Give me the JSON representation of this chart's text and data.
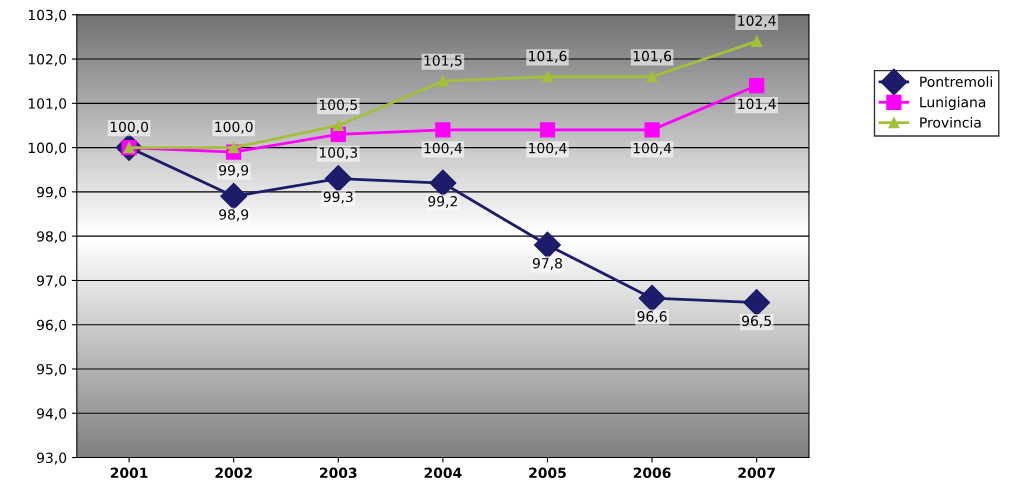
{
  "chart_data": {
    "type": "line",
    "categories": [
      "2001",
      "2002",
      "2003",
      "2004",
      "2005",
      "2006",
      "2007"
    ],
    "ylim": [
      93,
      103
    ],
    "yticks": [
      {
        "value": 93,
        "label": "93,0"
      },
      {
        "value": 94,
        "label": "94,0"
      },
      {
        "value": 95,
        "label": "95,0"
      },
      {
        "value": 96,
        "label": "96,0"
      },
      {
        "value": 97,
        "label": "97,0"
      },
      {
        "value": 98,
        "label": "98,0"
      },
      {
        "value": 99,
        "label": "99,0"
      },
      {
        "value": 100,
        "label": "100,0"
      },
      {
        "value": 101,
        "label": "101,0"
      },
      {
        "value": 102,
        "label": "102,0"
      },
      {
        "value": 103,
        "label": "103,0"
      }
    ],
    "grid": "y",
    "legend": "right",
    "series": [
      {
        "name": "Pontremoli",
        "color": "#1c1c6b",
        "marker": "diamond",
        "values": [
          100.0,
          98.9,
          99.3,
          99.2,
          97.8,
          96.6,
          96.5
        ],
        "value_labels": [
          null,
          "98,9",
          "99,3",
          "99,2",
          "97,8",
          "96,6",
          "96,5"
        ]
      },
      {
        "name": "Lunigiana",
        "color": "#ff00ff",
        "marker": "square",
        "values": [
          100.0,
          99.9,
          100.3,
          100.4,
          100.4,
          100.4,
          101.4
        ],
        "value_labels": [
          null,
          "99,9",
          "100,3",
          "100,4",
          "100,4",
          "100,4",
          "101,4"
        ]
      },
      {
        "name": "Provincia",
        "color": "#a2c03a",
        "marker": "triangle",
        "values": [
          100.0,
          100.0,
          100.5,
          101.5,
          101.6,
          101.6,
          102.4
        ],
        "value_labels": [
          "100,0",
          "100,0",
          "100,5",
          "101,5",
          "101,6",
          "101,6",
          "102,4"
        ]
      }
    ]
  }
}
